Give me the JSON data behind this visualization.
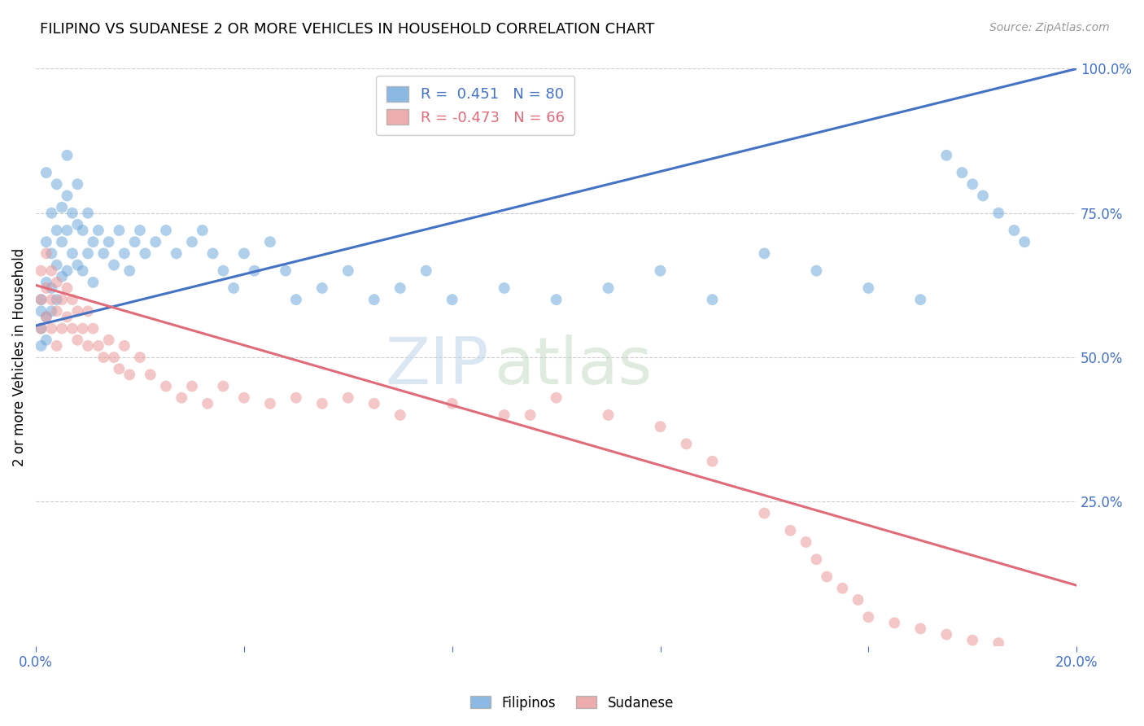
{
  "title": "FILIPINO VS SUDANESE 2 OR MORE VEHICLES IN HOUSEHOLD CORRELATION CHART",
  "source": "Source: ZipAtlas.com",
  "ylabel": "2 or more Vehicles in Household",
  "watermark_zip": "ZIP",
  "watermark_atlas": "atlas",
  "xlim": [
    0.0,
    0.2
  ],
  "ylim": [
    0.0,
    1.0
  ],
  "x_tick_positions": [
    0.0,
    0.04,
    0.08,
    0.12,
    0.16,
    0.2
  ],
  "x_tick_labels": [
    "0.0%",
    "",
    "",
    "",
    "",
    "20.0%"
  ],
  "y_ticks_right": [
    0.25,
    0.5,
    0.75,
    1.0
  ],
  "y_tick_labels_right": [
    "25.0%",
    "50.0%",
    "75.0%",
    "100.0%"
  ],
  "filipinos_color": "#6fa8dc",
  "sudanese_color": "#ea9999",
  "filipinos_line_color": "#4472c4",
  "sudanese_line_color": "#e06c7a",
  "legend_R_filipino": "0.451",
  "legend_N_filipino": "80",
  "legend_R_sudanese": "-0.473",
  "legend_N_sudanese": "66",
  "blue_line_x": [
    0.0,
    0.2
  ],
  "blue_line_y": [
    0.555,
    1.0
  ],
  "pink_line_x": [
    0.0,
    0.2
  ],
  "pink_line_y": [
    0.625,
    0.105
  ],
  "background_color": "#ffffff",
  "grid_color": "#cccccc",
  "title_color": "#000000",
  "source_color": "#999999",
  "marker_size": 100,
  "marker_alpha": 0.55,
  "filipinos_x": [
    0.001,
    0.001,
    0.001,
    0.001,
    0.002,
    0.002,
    0.002,
    0.002,
    0.002,
    0.003,
    0.003,
    0.003,
    0.003,
    0.004,
    0.004,
    0.004,
    0.004,
    0.005,
    0.005,
    0.005,
    0.006,
    0.006,
    0.006,
    0.006,
    0.007,
    0.007,
    0.008,
    0.008,
    0.008,
    0.009,
    0.009,
    0.01,
    0.01,
    0.011,
    0.011,
    0.012,
    0.013,
    0.014,
    0.015,
    0.016,
    0.017,
    0.018,
    0.019,
    0.02,
    0.021,
    0.023,
    0.025,
    0.027,
    0.03,
    0.032,
    0.034,
    0.036,
    0.038,
    0.04,
    0.042,
    0.045,
    0.048,
    0.05,
    0.055,
    0.06,
    0.065,
    0.07,
    0.075,
    0.08,
    0.09,
    0.1,
    0.11,
    0.12,
    0.13,
    0.14,
    0.15,
    0.16,
    0.17,
    0.175,
    0.178,
    0.18,
    0.182,
    0.185,
    0.188,
    0.19
  ],
  "filipinos_y": [
    0.6,
    0.55,
    0.58,
    0.52,
    0.82,
    0.7,
    0.63,
    0.57,
    0.53,
    0.75,
    0.68,
    0.62,
    0.58,
    0.8,
    0.72,
    0.66,
    0.6,
    0.76,
    0.7,
    0.64,
    0.85,
    0.78,
    0.72,
    0.65,
    0.75,
    0.68,
    0.8,
    0.73,
    0.66,
    0.72,
    0.65,
    0.75,
    0.68,
    0.7,
    0.63,
    0.72,
    0.68,
    0.7,
    0.66,
    0.72,
    0.68,
    0.65,
    0.7,
    0.72,
    0.68,
    0.7,
    0.72,
    0.68,
    0.7,
    0.72,
    0.68,
    0.65,
    0.62,
    0.68,
    0.65,
    0.7,
    0.65,
    0.6,
    0.62,
    0.65,
    0.6,
    0.62,
    0.65,
    0.6,
    0.62,
    0.6,
    0.62,
    0.65,
    0.6,
    0.68,
    0.65,
    0.62,
    0.6,
    0.85,
    0.82,
    0.8,
    0.78,
    0.75,
    0.72,
    0.7
  ],
  "sudanese_x": [
    0.001,
    0.001,
    0.001,
    0.002,
    0.002,
    0.002,
    0.003,
    0.003,
    0.003,
    0.004,
    0.004,
    0.004,
    0.005,
    0.005,
    0.006,
    0.006,
    0.007,
    0.007,
    0.008,
    0.008,
    0.009,
    0.01,
    0.01,
    0.011,
    0.012,
    0.013,
    0.014,
    0.015,
    0.016,
    0.017,
    0.018,
    0.02,
    0.022,
    0.025,
    0.028,
    0.03,
    0.033,
    0.036,
    0.04,
    0.045,
    0.05,
    0.055,
    0.06,
    0.065,
    0.07,
    0.08,
    0.09,
    0.095,
    0.1,
    0.11,
    0.12,
    0.125,
    0.13,
    0.14,
    0.145,
    0.148,
    0.15,
    0.152,
    0.155,
    0.158,
    0.16,
    0.165,
    0.17,
    0.175,
    0.18,
    0.185
  ],
  "sudanese_y": [
    0.65,
    0.6,
    0.55,
    0.68,
    0.62,
    0.57,
    0.65,
    0.6,
    0.55,
    0.63,
    0.58,
    0.52,
    0.6,
    0.55,
    0.62,
    0.57,
    0.6,
    0.55,
    0.58,
    0.53,
    0.55,
    0.58,
    0.52,
    0.55,
    0.52,
    0.5,
    0.53,
    0.5,
    0.48,
    0.52,
    0.47,
    0.5,
    0.47,
    0.45,
    0.43,
    0.45,
    0.42,
    0.45,
    0.43,
    0.42,
    0.43,
    0.42,
    0.43,
    0.42,
    0.4,
    0.42,
    0.4,
    0.4,
    0.43,
    0.4,
    0.38,
    0.35,
    0.32,
    0.23,
    0.2,
    0.18,
    0.15,
    0.12,
    0.1,
    0.08,
    0.05,
    0.04,
    0.03,
    0.02,
    0.01,
    0.005
  ]
}
